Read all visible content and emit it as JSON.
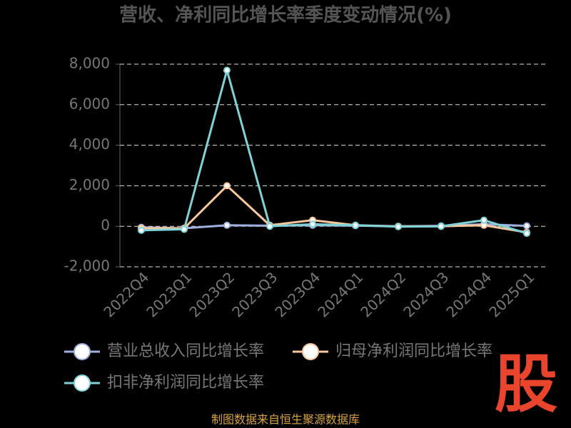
{
  "chart_data": {
    "type": "line",
    "title": "营收、净利同比增长率季度变动情况(%)",
    "categories": [
      "2022Q4",
      "2023Q1",
      "2023Q2",
      "2023Q3",
      "2023Q4",
      "2024Q1",
      "2024Q2",
      "2024Q3",
      "2024Q4",
      "2025Q1"
    ],
    "series": [
      {
        "name": "营业总收入同比增长率",
        "color": "#9fb0e0",
        "values": [
          -50,
          -100,
          50,
          30,
          50,
          30,
          0,
          20,
          100,
          20
        ]
      },
      {
        "name": "归母净利润同比增长率",
        "color": "#f8c89c",
        "values": [
          -100,
          -100,
          2000,
          50,
          300,
          50,
          0,
          0,
          50,
          -300
        ]
      },
      {
        "name": "扣非净利润同比增长率",
        "color": "#7fd3d8",
        "values": [
          -200,
          -150,
          7700,
          0,
          100,
          50,
          -20,
          0,
          300,
          -350
        ]
      }
    ],
    "ylim": [
      -2000,
      8000
    ],
    "yticks": [
      {
        "value": -2000,
        "label": "-2,000"
      },
      0,
      {
        "value": 2000,
        "label": "2,000"
      },
      {
        "value": 4000,
        "label": "4,000"
      },
      {
        "value": 6000,
        "label": "6,000"
      },
      {
        "value": 8000,
        "label": "8,000"
      }
    ],
    "grid": true,
    "legend": "bottom",
    "source": "制图数据来自恒生聚源数据库",
    "logo": "股"
  }
}
